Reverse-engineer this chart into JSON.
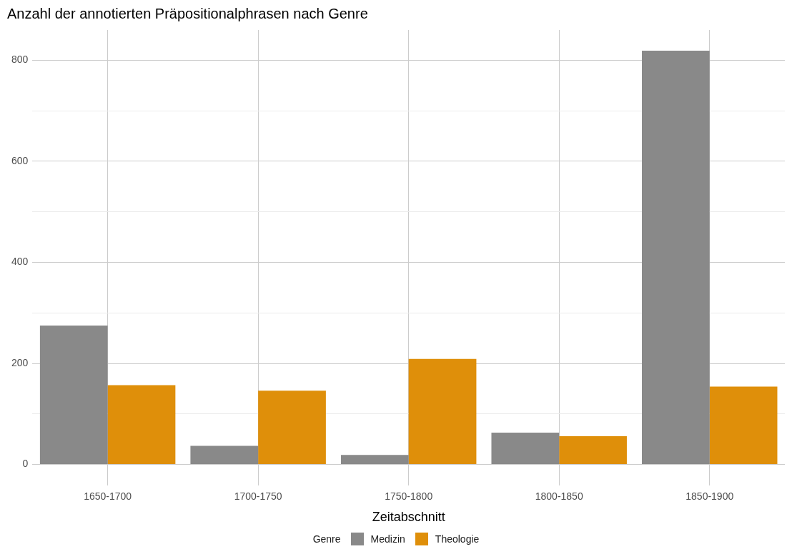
{
  "chart_data": {
    "type": "bar",
    "title": "Anzahl der annotierten Präpositionalphrasen nach Genre",
    "xlabel": "Zeitabschnitt",
    "legend_title": "Genre",
    "categories": [
      "1650-1700",
      "1700-1750",
      "1750-1800",
      "1800-1850",
      "1850-1900"
    ],
    "series": [
      {
        "name": "Medizin",
        "color": "#898989",
        "values": [
          275,
          37,
          19,
          63,
          819
        ]
      },
      {
        "name": "Theologie",
        "color": "#df8f0a",
        "values": [
          157,
          146,
          209,
          56,
          154
        ]
      }
    ],
    "ylim": [
      -41,
      860
    ],
    "yticks": [
      0,
      {
        "value": 100,
        "label": null
      },
      200,
      {
        "value": 300,
        "label": null
      },
      400,
      {
        "value": 500,
        "label": null
      },
      600,
      {
        "value": 700,
        "label": null
      },
      800
    ],
    "grid": true,
    "legend": "bottom"
  }
}
